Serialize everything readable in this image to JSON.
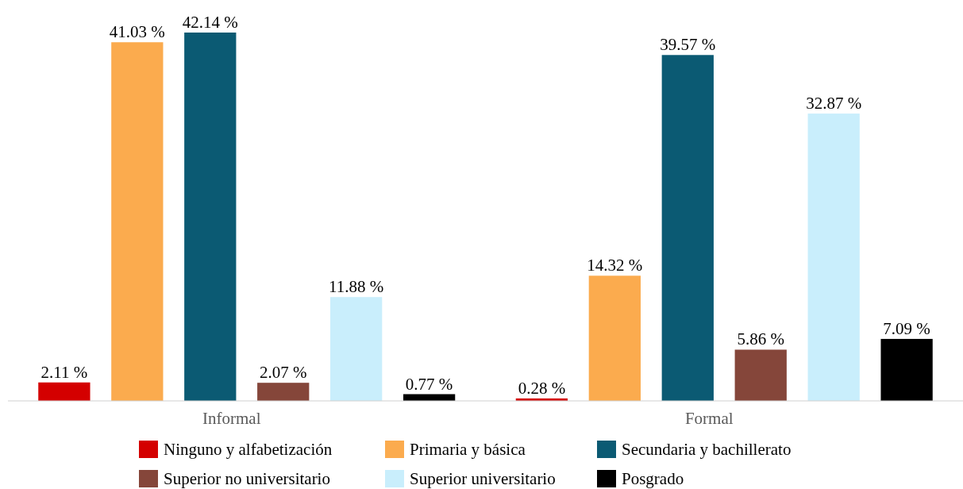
{
  "chart_data": {
    "type": "bar",
    "categories": [
      "Informal",
      "Formal"
    ],
    "legend": "bottom",
    "series": [
      {
        "name": "Ninguno y alfabetización",
        "color": "#d40000",
        "values": [
          2.11,
          0.28
        ],
        "value_labels": [
          "2.11 %",
          "0.28 %"
        ]
      },
      {
        "name": "Primaria y básica",
        "color": "#fbab4e",
        "values": [
          41.03,
          14.32
        ],
        "value_labels": [
          "41.03 %",
          "14.32 %"
        ]
      },
      {
        "name": "Secundaria y bachillerato",
        "color": "#0b5a73",
        "values": [
          42.14,
          39.57
        ],
        "value_labels": [
          "42.14 %",
          "39.57 %"
        ]
      },
      {
        "name": "Superior no universitario",
        "color": "#85463a",
        "values": [
          2.07,
          5.86
        ],
        "value_labels": [
          "2.07 %",
          "5.86 %"
        ]
      },
      {
        "name": "Superior universitario",
        "color": "#c9eefc",
        "values": [
          11.88,
          32.87
        ],
        "value_labels": [
          "11.88 %",
          "32.87 %"
        ]
      },
      {
        "name": "Posgrado",
        "color": "#000000",
        "values": [
          0.77,
          7.09
        ],
        "value_labels": [
          "0.77 %",
          "7.09 %"
        ]
      }
    ]
  }
}
